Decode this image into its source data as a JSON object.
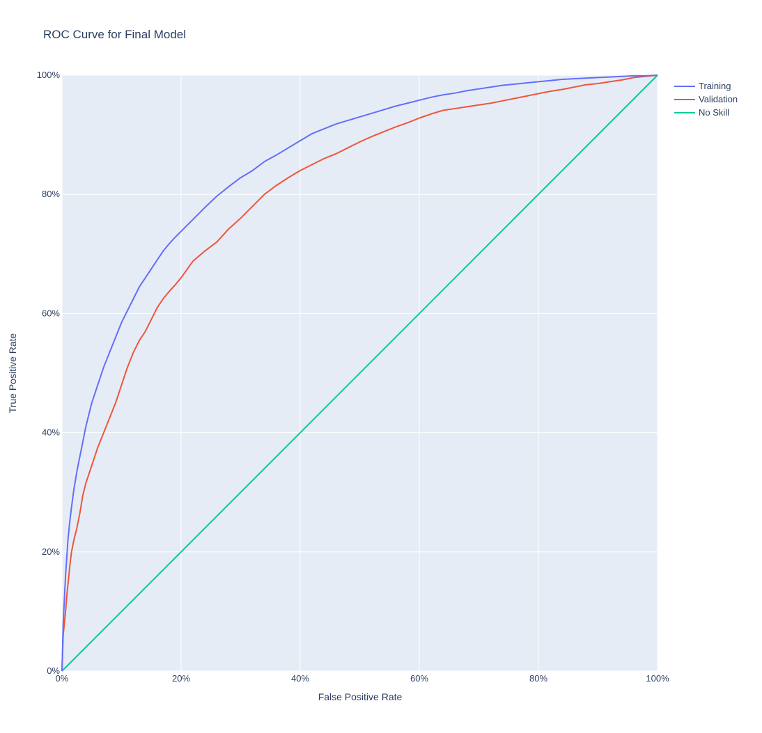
{
  "chart_data": {
    "type": "line",
    "title": "ROC Curve for Final Model",
    "xlabel": "False Positive Rate",
    "ylabel": "True Positive Rate",
    "xlim": [
      0,
      1
    ],
    "ylim": [
      0,
      1
    ],
    "x_ticks": [
      "0%",
      "20%",
      "40%",
      "60%",
      "80%",
      "100%"
    ],
    "y_ticks": [
      "0%",
      "20%",
      "40%",
      "60%",
      "80%",
      "100%"
    ],
    "grid": true,
    "legend": "top-right, outside plot",
    "background_color": "#e5ecf6",
    "series": [
      {
        "name": "Training",
        "color": "#636efa",
        "x": [
          0,
          0.002,
          0.004,
          0.006,
          0.008,
          0.01,
          0.013,
          0.016,
          0.02,
          0.025,
          0.03,
          0.035,
          0.04,
          0.045,
          0.05,
          0.06,
          0.07,
          0.08,
          0.09,
          0.1,
          0.11,
          0.12,
          0.13,
          0.14,
          0.15,
          0.16,
          0.17,
          0.18,
          0.19,
          0.2,
          0.22,
          0.24,
          0.26,
          0.28,
          0.3,
          0.32,
          0.34,
          0.36,
          0.38,
          0.4,
          0.42,
          0.44,
          0.46,
          0.48,
          0.5,
          0.52,
          0.54,
          0.56,
          0.58,
          0.6,
          0.62,
          0.64,
          0.66,
          0.68,
          0.7,
          0.72,
          0.74,
          0.76,
          0.78,
          0.8,
          0.82,
          0.84,
          0.86,
          0.88,
          0.9,
          0.92,
          0.94,
          0.96,
          0.98,
          1.0
        ],
        "y": [
          0,
          0.08,
          0.12,
          0.16,
          0.19,
          0.22,
          0.25,
          0.275,
          0.305,
          0.335,
          0.36,
          0.385,
          0.41,
          0.43,
          0.45,
          0.48,
          0.51,
          0.535,
          0.56,
          0.585,
          0.605,
          0.625,
          0.645,
          0.66,
          0.675,
          0.69,
          0.705,
          0.717,
          0.728,
          0.738,
          0.758,
          0.778,
          0.797,
          0.813,
          0.828,
          0.84,
          0.855,
          0.866,
          0.878,
          0.89,
          0.902,
          0.91,
          0.918,
          0.924,
          0.93,
          0.936,
          0.942,
          0.948,
          0.953,
          0.958,
          0.963,
          0.967,
          0.97,
          0.974,
          0.977,
          0.98,
          0.983,
          0.985,
          0.987,
          0.989,
          0.991,
          0.993,
          0.994,
          0.995,
          0.996,
          0.997,
          0.998,
          0.999,
          0.999,
          1.0
        ]
      },
      {
        "name": "Validation",
        "color": "#ef553b",
        "x": [
          0,
          0.002,
          0.004,
          0.006,
          0.008,
          0.01,
          0.013,
          0.016,
          0.02,
          0.025,
          0.03,
          0.035,
          0.04,
          0.045,
          0.05,
          0.06,
          0.07,
          0.08,
          0.09,
          0.1,
          0.11,
          0.12,
          0.13,
          0.14,
          0.15,
          0.16,
          0.17,
          0.18,
          0.19,
          0.2,
          0.22,
          0.24,
          0.26,
          0.28,
          0.3,
          0.32,
          0.34,
          0.36,
          0.38,
          0.4,
          0.42,
          0.44,
          0.46,
          0.48,
          0.5,
          0.52,
          0.54,
          0.56,
          0.58,
          0.6,
          0.62,
          0.64,
          0.66,
          0.68,
          0.7,
          0.72,
          0.74,
          0.76,
          0.78,
          0.8,
          0.82,
          0.84,
          0.86,
          0.88,
          0.9,
          0.92,
          0.94,
          0.96,
          0.98,
          1.0
        ],
        "y": [
          0,
          0.06,
          0.08,
          0.1,
          0.125,
          0.145,
          0.175,
          0.2,
          0.22,
          0.24,
          0.265,
          0.295,
          0.315,
          0.33,
          0.345,
          0.375,
          0.4,
          0.425,
          0.45,
          0.48,
          0.51,
          0.535,
          0.555,
          0.57,
          0.59,
          0.61,
          0.625,
          0.637,
          0.648,
          0.66,
          0.688,
          0.705,
          0.72,
          0.742,
          0.76,
          0.78,
          0.8,
          0.815,
          0.828,
          0.84,
          0.85,
          0.86,
          0.868,
          0.878,
          0.888,
          0.897,
          0.905,
          0.913,
          0.92,
          0.928,
          0.935,
          0.941,
          0.944,
          0.947,
          0.95,
          0.953,
          0.957,
          0.961,
          0.965,
          0.969,
          0.973,
          0.976,
          0.98,
          0.984,
          0.986,
          0.989,
          0.992,
          0.996,
          0.998,
          1.0
        ]
      },
      {
        "name": "No Skill",
        "color": "#00cc96",
        "x": [
          0,
          1
        ],
        "y": [
          0,
          1
        ]
      }
    ]
  }
}
